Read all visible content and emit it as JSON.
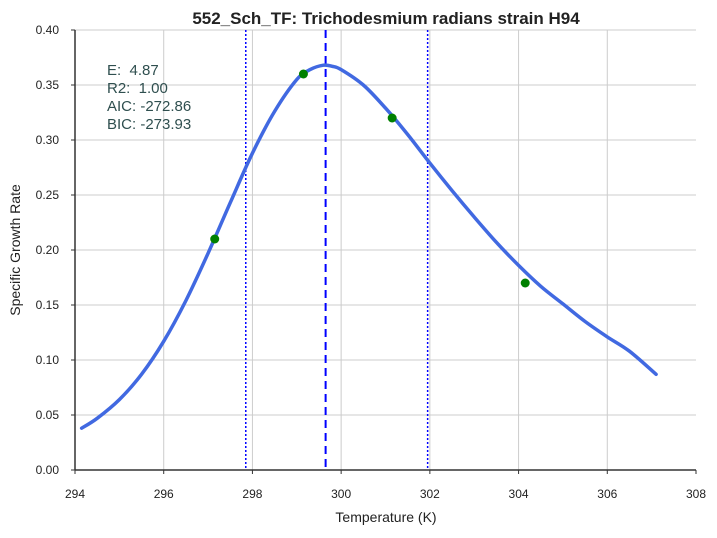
{
  "chart_data": {
    "type": "line",
    "title": "552_Sch_TF: Trichodesmium radians strain H94",
    "xlabel": "Temperature (K)",
    "ylabel": "Specific Growth Rate",
    "xlim": [
      294,
      308
    ],
    "ylim": [
      0.0,
      0.4
    ],
    "xticks": [
      "294",
      "296",
      "298",
      "300",
      "302",
      "304",
      "306",
      "308"
    ],
    "yticks": [
      "0.00",
      "0.05",
      "0.10",
      "0.15",
      "0.20",
      "0.25",
      "0.30",
      "0.35",
      "0.40"
    ],
    "grid": true,
    "stats_lines": [
      "E:  4.87",
      "R2:  1.00",
      "AIC: -272.86",
      "BIC: -273.93"
    ],
    "series": [
      {
        "kind": "fit-curve",
        "color": "#4169e1",
        "x": [
          294.15,
          294.5,
          295.0,
          295.5,
          296.0,
          296.5,
          297.0,
          297.5,
          298.0,
          298.5,
          299.0,
          299.3,
          299.6,
          299.8,
          300.0,
          300.5,
          301.0,
          301.5,
          302.0,
          302.5,
          303.0,
          303.5,
          304.0,
          304.5,
          305.0,
          305.5,
          306.0,
          306.5,
          307.1
        ],
        "y": [
          0.038,
          0.047,
          0.064,
          0.087,
          0.117,
          0.154,
          0.197,
          0.243,
          0.288,
          0.326,
          0.355,
          0.364,
          0.368,
          0.367,
          0.364,
          0.35,
          0.329,
          0.305,
          0.279,
          0.254,
          0.23,
          0.207,
          0.186,
          0.167,
          0.151,
          0.135,
          0.121,
          0.108,
          0.087
        ]
      },
      {
        "kind": "observed-points",
        "color": "#008000",
        "x": [
          297.15,
          299.15,
          301.15,
          304.15
        ],
        "y": [
          0.21,
          0.36,
          0.32,
          0.17
        ]
      }
    ],
    "vertical_lines": [
      {
        "x": 297.85,
        "style": "dotted",
        "color": "#0000ff"
      },
      {
        "x": 299.65,
        "style": "dashed",
        "color": "#0000ff"
      },
      {
        "x": 301.95,
        "style": "dotted",
        "color": "#0000ff"
      }
    ],
    "colors": {
      "grid": "#cccccc",
      "axis": "#333333",
      "stats_text": "#2f4f4f"
    }
  }
}
